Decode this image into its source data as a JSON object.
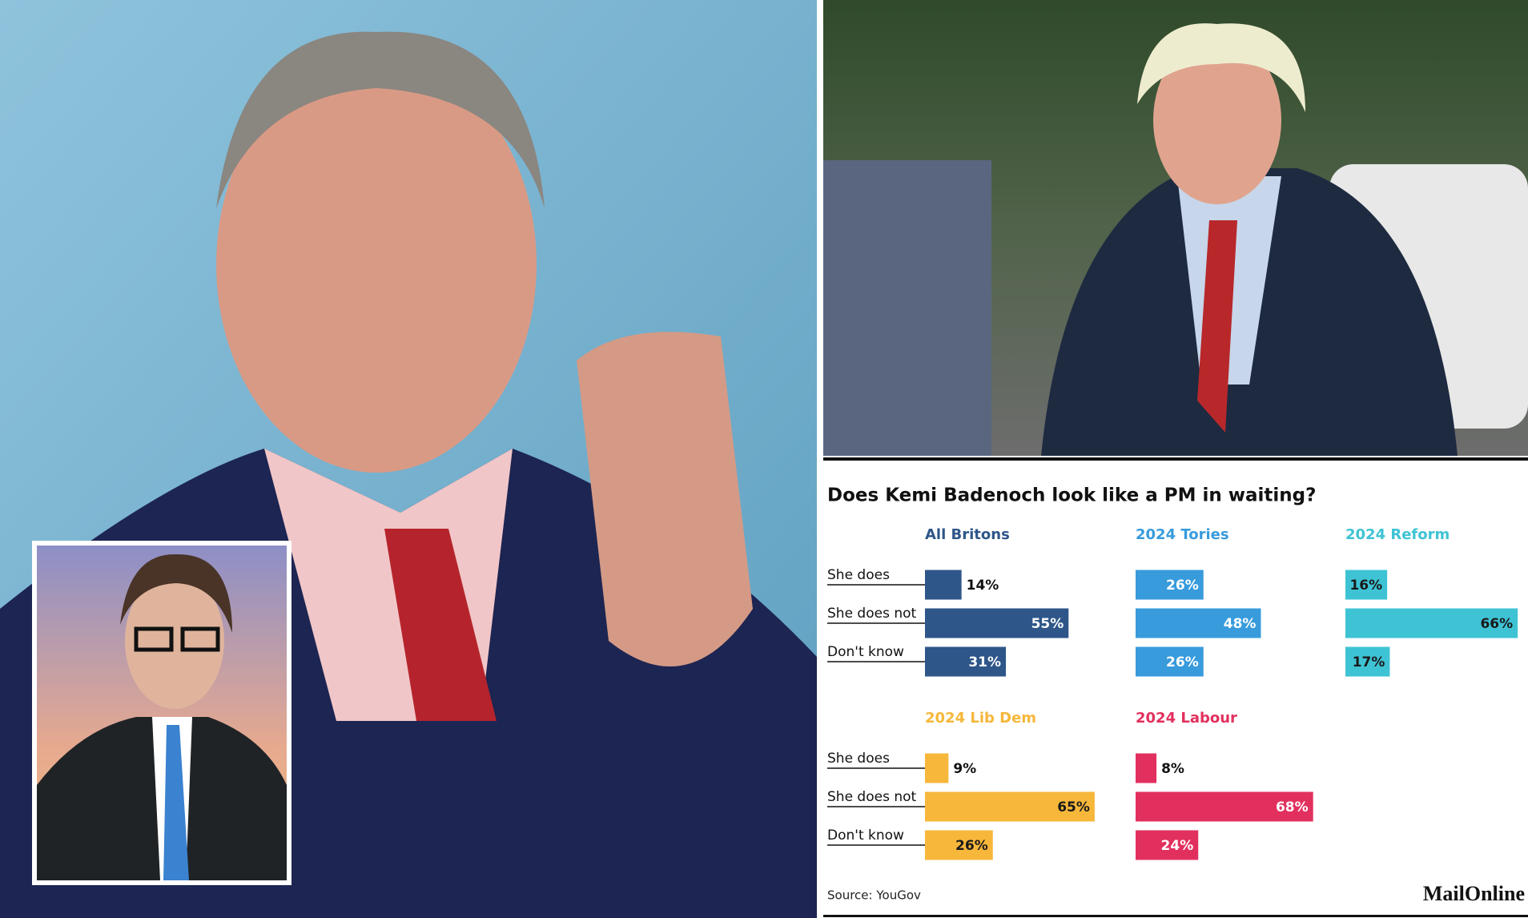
{
  "title": "Does Kemi Badenoch look like a PM in waiting?",
  "source": "Source: YouGov",
  "brand": "MailOnline",
  "chart_data": [
    {
      "type": "bar",
      "title": "All Britons",
      "categories": [
        "She does",
        "She does not",
        "Don't know"
      ],
      "values": [
        14,
        55,
        31
      ],
      "value_labels": [
        "14%",
        "55%",
        "31%"
      ],
      "color": "#2e5689",
      "label_color": "#ffffff"
    },
    {
      "type": "bar",
      "title": "2024 Tories",
      "values": [
        26,
        48,
        26
      ],
      "value_labels": [
        "26%",
        "48%",
        "26%"
      ],
      "color": "#389bdc",
      "label_color": "#ffffff"
    },
    {
      "type": "bar",
      "title": "2024 Reform",
      "values": [
        16,
        66,
        17
      ],
      "value_labels": [
        "16%",
        "66%",
        "17%"
      ],
      "color": "#3ec3d4",
      "label_color": "#1a1a1a"
    },
    {
      "type": "bar",
      "title": "2024 Lib Dem",
      "categories": [
        "She does",
        "She does not",
        "Don't know"
      ],
      "values": [
        9,
        65,
        26
      ],
      "value_labels": [
        "9%",
        "65%",
        "26%"
      ],
      "color": "#f6b73a",
      "label_color": "#1a1a1a"
    },
    {
      "type": "bar",
      "title": "2024 Labour",
      "values": [
        8,
        68,
        24
      ],
      "value_labels": [
        "8%",
        "68%",
        "24%"
      ],
      "color": "#e2305e",
      "label_color": "#ffffff"
    }
  ]
}
